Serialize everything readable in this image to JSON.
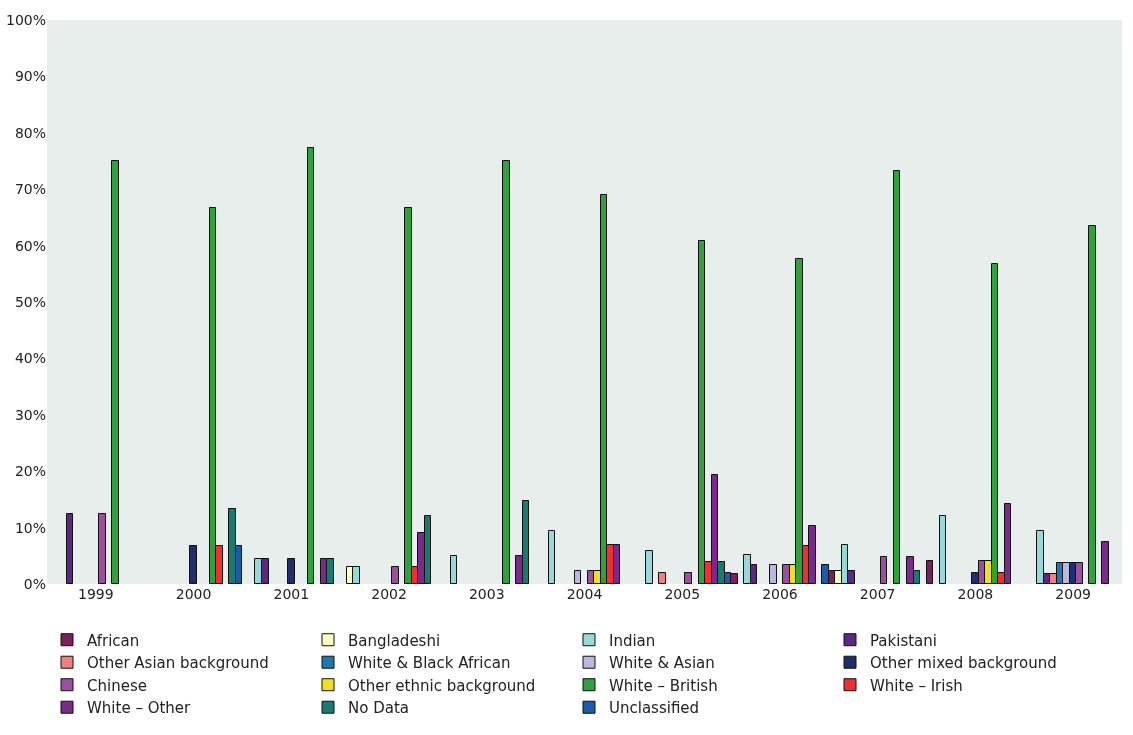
{
  "chart_data": {
    "type": "bar",
    "categories": [
      "1999",
      "2000",
      "2001",
      "2002",
      "2003",
      "2004",
      "2005",
      "2006",
      "2007",
      "2008",
      "2009"
    ],
    "series": [
      {
        "name": "African",
        "color": "#7b1f5e",
        "values": [
          null,
          null,
          null,
          null,
          null,
          null,
          null,
          1.7,
          2.3,
          4.0,
          null
        ]
      },
      {
        "name": "Bangladeshi",
        "color": "#ffffc8",
        "values": [
          null,
          null,
          null,
          3.0,
          null,
          null,
          null,
          null,
          2.3,
          null,
          null
        ]
      },
      {
        "name": "Indian",
        "color": "#99d8d8",
        "values": [
          null,
          null,
          4.4,
          3.0,
          4.9,
          9.4,
          5.8,
          5.1,
          7.0,
          12.1,
          9.4
        ]
      },
      {
        "name": "Pakistani",
        "color": "#5a2a82",
        "values": [
          12.5,
          null,
          4.4,
          null,
          null,
          null,
          null,
          3.4,
          2.3,
          null,
          1.8
        ]
      },
      {
        "name": "Other Asian background",
        "color": "#f08080",
        "values": [
          null,
          null,
          null,
          null,
          null,
          null,
          1.9,
          null,
          null,
          null,
          1.8
        ]
      },
      {
        "name": "White & Black African",
        "color": "#1f78b4",
        "values": [
          null,
          null,
          null,
          null,
          null,
          null,
          null,
          null,
          null,
          null,
          3.8
        ]
      },
      {
        "name": "White & Asian",
        "color": "#b8b8e0",
        "values": [
          null,
          null,
          null,
          null,
          null,
          2.3,
          null,
          3.4,
          null,
          null,
          3.8
        ]
      },
      {
        "name": "Other mixed background",
        "color": "#1f2f6e",
        "values": [
          null,
          6.7,
          4.4,
          null,
          null,
          null,
          null,
          null,
          null,
          2.0,
          3.8
        ]
      },
      {
        "name": "Chinese",
        "color": "#9b4f9e",
        "values": [
          12.5,
          null,
          null,
          3.0,
          null,
          2.3,
          1.9,
          3.4,
          4.7,
          4.0,
          3.8
        ]
      },
      {
        "name": "Other ethnic background",
        "color": "#f0e020",
        "values": [
          null,
          null,
          null,
          null,
          null,
          2.3,
          null,
          3.4,
          null,
          4.0,
          null
        ]
      },
      {
        "name": "White – British",
        "color": "#33a040",
        "values": [
          75,
          66.7,
          77.3,
          66.7,
          75,
          69,
          60.8,
          57.6,
          73.3,
          56.7,
          63.5
        ]
      },
      {
        "name": "White – Irish",
        "color": "#f03030",
        "values": [
          null,
          6.7,
          null,
          3.0,
          null,
          7.0,
          3.9,
          6.8,
          null,
          2.0,
          null
        ]
      },
      {
        "name": "White – Other",
        "color": "#7a2a8a",
        "values": [
          null,
          null,
          4.4,
          9.0,
          4.9,
          7.0,
          19.4,
          10.3,
          4.7,
          14.1,
          7.5
        ]
      },
      {
        "name": "No Data",
        "color": "#1a7a70",
        "values": [
          null,
          13.3,
          4.4,
          12.1,
          14.8,
          null,
          3.9,
          null,
          2.3,
          null,
          null
        ]
      },
      {
        "name": "Unclassified",
        "color": "#1f5aa8",
        "values": [
          null,
          6.7,
          null,
          null,
          null,
          null,
          1.9,
          3.4,
          null,
          null,
          null
        ]
      }
    ],
    "ylim": [
      0,
      100
    ],
    "yticks": [
      {
        "value": 0,
        "label": "0%"
      },
      {
        "value": 10,
        "label": "10%"
      },
      {
        "value": 20,
        "label": "20%"
      },
      {
        "value": 30,
        "label": "30%"
      },
      {
        "value": 40,
        "label": "40%"
      },
      {
        "value": 50,
        "label": "50%"
      },
      {
        "value": 60,
        "label": "60%"
      },
      {
        "value": 70,
        "label": "70%"
      },
      {
        "value": 80,
        "label": "80%"
      },
      {
        "value": 90,
        "label": "90%"
      },
      {
        "value": 100,
        "label": "100%"
      }
    ],
    "grid": false,
    "legend": "bottom"
  }
}
